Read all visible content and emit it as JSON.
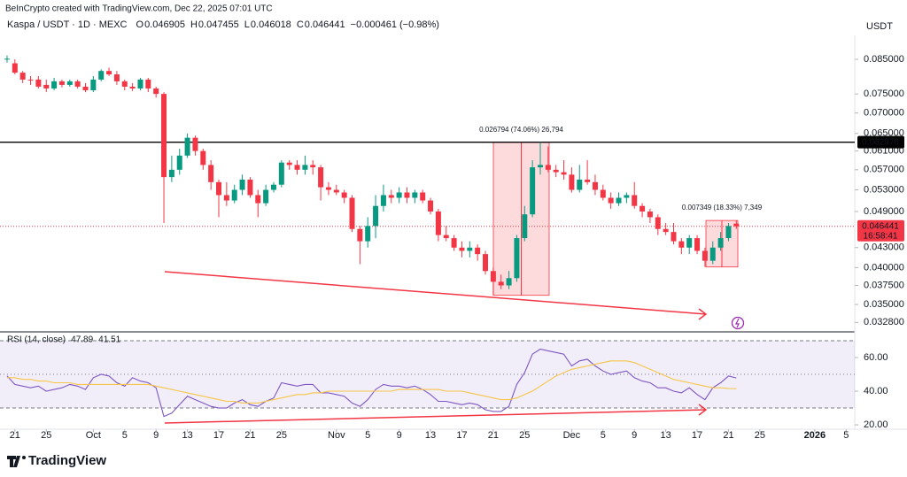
{
  "header": {
    "credit": "BeInCrypto created with TradingView.com, Dec 22, 2025 07:01 UTC",
    "brand": "TradingView"
  },
  "chart_data": [
    {
      "type": "candlestick",
      "title": "Kaspa / USDT · 1D · MEXC",
      "currency": "USDT",
      "legend": [
        {
          "key": "O",
          "value": "0.046905"
        },
        {
          "key": "H",
          "value": "0.047455"
        },
        {
          "key": "L",
          "value": "0.046018"
        },
        {
          "key": "C",
          "value": "0.046441"
        }
      ],
      "change": "−0.000461 (−0.98%)",
      "up_color": "#089981",
      "down_color": "#f23645",
      "log_scale": true,
      "open": [
        0.085,
        0.0838,
        0.081,
        0.079,
        0.079,
        0.0775,
        0.0765,
        0.0785,
        0.0775,
        0.0785,
        0.077,
        0.076,
        0.079,
        0.0815,
        0.0805,
        0.0785,
        0.077,
        0.0765,
        0.079,
        0.0765,
        0.075,
        0.0555,
        0.057,
        0.06,
        0.064,
        0.061,
        0.058,
        0.0545,
        0.052,
        0.051,
        0.053,
        0.055,
        0.052,
        0.0505,
        0.053,
        0.054,
        0.0585,
        0.058,
        0.057,
        0.058,
        0.0575,
        0.0535,
        0.053,
        0.0525,
        0.0515,
        0.046,
        0.044,
        0.0465,
        0.05,
        0.052,
        0.0515,
        0.0525,
        0.0515,
        0.0525,
        0.051,
        0.049,
        0.045,
        0.0445,
        0.043,
        0.0425,
        0.043,
        0.042,
        0.0395,
        0.038,
        0.0375,
        0.0385,
        0.0445,
        0.0485,
        0.0575,
        0.058,
        0.057,
        0.0565,
        0.056,
        0.053,
        0.055,
        0.0545,
        0.053,
        0.0515,
        0.0505,
        0.0515,
        0.052,
        0.05,
        0.049,
        0.048,
        0.046,
        0.0455,
        0.044,
        0.043,
        0.0445,
        0.0425,
        0.041,
        0.043,
        0.0445,
        0.046905
      ],
      "high": [
        0.0862,
        0.085,
        0.0815,
        0.08,
        0.08,
        0.079,
        0.0795,
        0.079,
        0.079,
        0.079,
        0.078,
        0.08,
        0.082,
        0.0825,
        0.0815,
        0.079,
        0.078,
        0.0795,
        0.0795,
        0.077,
        0.0755,
        0.06,
        0.0615,
        0.065,
        0.0645,
        0.0615,
        0.059,
        0.055,
        0.0545,
        0.054,
        0.056,
        0.0555,
        0.053,
        0.054,
        0.0545,
        0.059,
        0.059,
        0.059,
        0.06,
        0.059,
        0.058,
        0.0545,
        0.054,
        0.053,
        0.052,
        0.0465,
        0.048,
        0.052,
        0.054,
        0.053,
        0.0535,
        0.0535,
        0.053,
        0.053,
        0.0515,
        0.0495,
        0.0465,
        0.045,
        0.044,
        0.044,
        0.0435,
        0.0425,
        0.04,
        0.039,
        0.0395,
        0.045,
        0.05,
        0.059,
        0.062974,
        0.062,
        0.058,
        0.059,
        0.0575,
        0.058,
        0.059,
        0.056,
        0.054,
        0.0525,
        0.0525,
        0.0525,
        0.0545,
        0.0505,
        0.0495,
        0.0485,
        0.047,
        0.047,
        0.0445,
        0.045,
        0.045,
        0.043,
        0.044,
        0.0455,
        0.047,
        0.047455
      ],
      "low": [
        0.084,
        0.0805,
        0.078,
        0.0775,
        0.0765,
        0.0755,
        0.076,
        0.0768,
        0.077,
        0.0765,
        0.0755,
        0.0755,
        0.0785,
        0.08,
        0.0775,
        0.076,
        0.0758,
        0.076,
        0.0755,
        0.074,
        0.047,
        0.0545,
        0.056,
        0.0595,
        0.06,
        0.057,
        0.053,
        0.048,
        0.05,
        0.0505,
        0.052,
        0.0515,
        0.048,
        0.05,
        0.0525,
        0.0535,
        0.057,
        0.056,
        0.056,
        0.056,
        0.051,
        0.052,
        0.052,
        0.0505,
        0.0455,
        0.0405,
        0.043,
        0.0445,
        0.049,
        0.0505,
        0.0505,
        0.0505,
        0.0505,
        0.0505,
        0.0485,
        0.044,
        0.044,
        0.0425,
        0.0415,
        0.0415,
        0.041,
        0.039,
        0.03618,
        0.037,
        0.037,
        0.038,
        0.044,
        0.048,
        0.056,
        0.0565,
        0.0555,
        0.055,
        0.0525,
        0.0525,
        0.054,
        0.052,
        0.051,
        0.0495,
        0.05,
        0.0505,
        0.0495,
        0.048,
        0.047,
        0.045,
        0.045,
        0.0435,
        0.042,
        0.042,
        0.042,
        0.04009,
        0.0405,
        0.0425,
        0.044,
        0.046018
      ],
      "close": [
        0.0852,
        0.081,
        0.079,
        0.0788,
        0.077,
        0.0765,
        0.0785,
        0.0775,
        0.0785,
        0.077,
        0.076,
        0.079,
        0.0815,
        0.0805,
        0.0785,
        0.077,
        0.0765,
        0.079,
        0.0765,
        0.075,
        0.0555,
        0.057,
        0.06,
        0.064,
        0.061,
        0.058,
        0.0545,
        0.052,
        0.051,
        0.053,
        0.055,
        0.052,
        0.0505,
        0.053,
        0.054,
        0.0585,
        0.058,
        0.057,
        0.058,
        0.0575,
        0.0535,
        0.053,
        0.0525,
        0.0515,
        0.046,
        0.044,
        0.0465,
        0.05,
        0.052,
        0.0515,
        0.0525,
        0.0515,
        0.0525,
        0.051,
        0.049,
        0.045,
        0.0445,
        0.043,
        0.0425,
        0.043,
        0.042,
        0.0395,
        0.038,
        0.0375,
        0.0385,
        0.0445,
        0.0485,
        0.0575,
        0.058,
        0.057,
        0.0565,
        0.056,
        0.053,
        0.055,
        0.0545,
        0.053,
        0.0515,
        0.0505,
        0.0515,
        0.052,
        0.05,
        0.049,
        0.048,
        0.046,
        0.0455,
        0.044,
        0.043,
        0.0445,
        0.0425,
        0.041,
        0.043,
        0.0445,
        0.0465,
        0.046441
      ],
      "xlim": [
        -0.9,
        108.1
      ],
      "ylim": [
        0.0319,
        0.0927
      ],
      "yticks": [
        {
          "value": 0.085,
          "label": "0.085000"
        },
        {
          "value": 0.075,
          "label": "0.075000"
        },
        {
          "value": 0.07,
          "label": "0.070000"
        },
        {
          "value": 0.065,
          "label": "0.065000"
        },
        {
          "value": 0.061,
          "label": "0.061000"
        },
        {
          "value": 0.057,
          "label": "0.057000"
        },
        {
          "value": 0.053,
          "label": "0.053000"
        },
        {
          "value": 0.049,
          "label": "0.049000"
        },
        {
          "value": 0.043,
          "label": "0.043000"
        },
        {
          "value": 0.04,
          "label": "0.040000"
        },
        {
          "value": 0.0375,
          "label": "0.037500"
        },
        {
          "value": 0.035,
          "label": "0.035000"
        },
        {
          "value": 0.0328,
          "label": "0.032800"
        }
      ],
      "xticks": [
        {
          "value": 1,
          "label": "21"
        },
        {
          "value": 5,
          "label": "25"
        },
        {
          "value": 11,
          "label": "Oct"
        },
        {
          "value": 15,
          "label": "5"
        },
        {
          "value": 19,
          "label": "9"
        },
        {
          "value": 23,
          "label": "13"
        },
        {
          "value": 27,
          "label": "17"
        },
        {
          "value": 31,
          "label": "21"
        },
        {
          "value": 35,
          "label": "25"
        },
        {
          "value": 42,
          "label": "Nov"
        },
        {
          "value": 46,
          "label": "5"
        },
        {
          "value": 50,
          "label": "9"
        },
        {
          "value": 54,
          "label": "13"
        },
        {
          "value": 58,
          "label": "17"
        },
        {
          "value": 62,
          "label": "21"
        },
        {
          "value": 66,
          "label": "25"
        },
        {
          "value": 72,
          "label": "Dec"
        },
        {
          "value": 76,
          "label": "5"
        },
        {
          "value": 80,
          "label": "9"
        },
        {
          "value": 84,
          "label": "13"
        },
        {
          "value": 88,
          "label": "17"
        },
        {
          "value": 92,
          "label": "21"
        },
        {
          "value": 96,
          "label": "25"
        },
        {
          "value": 103,
          "label": "2026",
          "bold": true
        },
        {
          "value": 107,
          "label": "5"
        }
      ],
      "hline": {
        "value": 0.062976,
        "label": "0.062976",
        "color": "#000000"
      },
      "last_price": {
        "value": 0.046441,
        "label": "0.046441",
        "countdown": "16:58:41"
      },
      "measures": [
        {
          "low": 0.03618,
          "high": 0.062974,
          "label": "0.026794 (74.06%) 26,794"
        },
        {
          "low": 0.04009,
          "high": 0.04744,
          "label": "0.007349 (18.33%) 7,349"
        }
      ]
    },
    {
      "type": "line",
      "title": "RSI (14, close)",
      "ylim": [
        17.4,
        73.7
      ],
      "yticks": [
        {
          "value": 60,
          "label": "60.00"
        },
        {
          "value": 40,
          "label": "40.00"
        },
        {
          "value": 20,
          "label": "20.00"
        }
      ],
      "series": [
        {
          "color": "#7e57c2",
          "last_label": "47.89",
          "values": [
            49,
            44,
            43,
            42,
            43,
            40,
            41,
            42,
            44,
            43,
            41,
            48,
            50,
            49,
            45,
            43,
            48,
            46,
            45,
            42,
            25,
            27,
            32,
            37,
            35,
            33,
            31,
            30,
            30,
            33,
            35,
            32,
            31,
            34,
            36,
            45,
            44,
            43,
            44,
            44,
            39,
            39,
            38,
            37,
            33,
            31,
            35,
            41,
            44,
            43,
            43,
            42,
            43,
            41,
            38,
            34,
            34,
            33,
            32,
            33,
            32,
            29,
            28,
            28,
            31,
            44,
            51,
            62,
            65,
            64,
            63,
            62,
            55,
            58,
            59,
            55,
            52,
            50,
            51,
            52,
            48,
            46,
            45,
            42,
            42,
            40,
            39,
            42,
            38,
            35,
            42,
            45,
            49,
            47.89
          ]
        },
        {
          "color": "#f7c548",
          "last_label": "41.51",
          "values": [
            48,
            48,
            47,
            47,
            46,
            46,
            45,
            45,
            45,
            44,
            44,
            44,
            44,
            44,
            44,
            44,
            44,
            44,
            44,
            43,
            42,
            41,
            40,
            39,
            38,
            37,
            36,
            35,
            34,
            34,
            33,
            33,
            33,
            34,
            35,
            36,
            37,
            38,
            38,
            39,
            39,
            40,
            40,
            40,
            40,
            40,
            40,
            40,
            40,
            40,
            41,
            41,
            41,
            41,
            41,
            41,
            40,
            40,
            40,
            39,
            38,
            37,
            36,
            35,
            35,
            36,
            38,
            40,
            43,
            46,
            49,
            51,
            53,
            54,
            55,
            56,
            57,
            58,
            58,
            58,
            57,
            55,
            53,
            51,
            49,
            47,
            46,
            45,
            44,
            43,
            42,
            42,
            41.6,
            41.51
          ]
        }
      ]
    }
  ]
}
